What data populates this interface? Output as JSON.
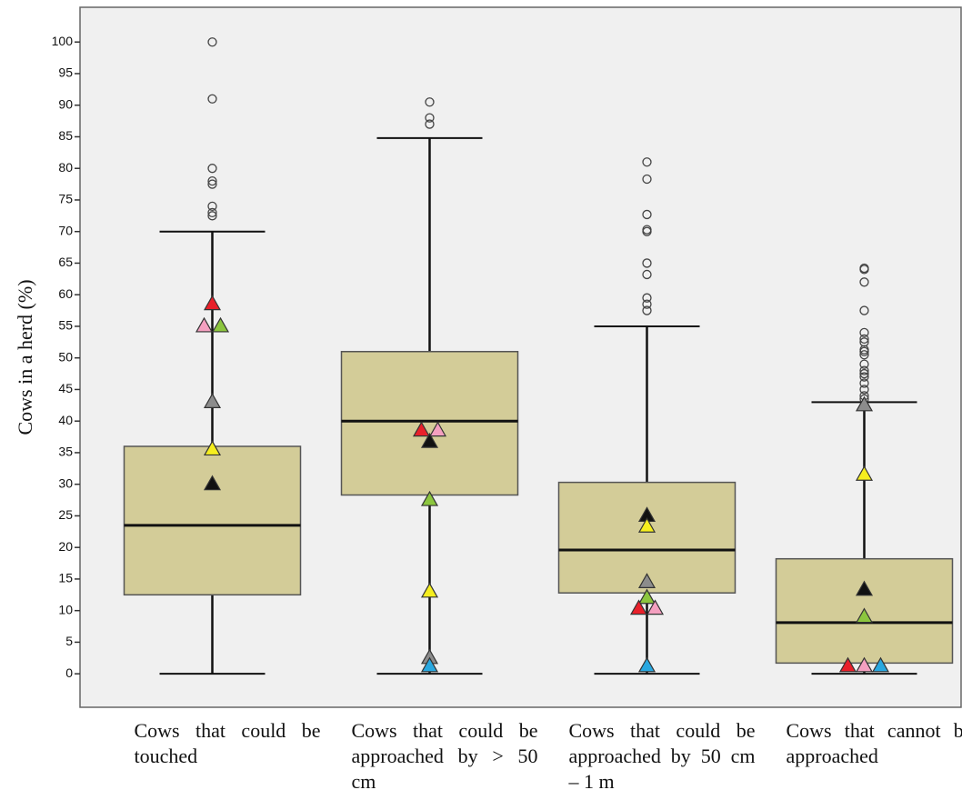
{
  "chart_data": {
    "type": "box",
    "ylabel": "Cows in a herd (%)",
    "categories": [
      "Cows that could be touched",
      "Cows that could be approached by > 50 cm",
      "Cows that could be approached by 50 cm – 1 m",
      "Cows that cannot be approached"
    ],
    "boxes": [
      {
        "whislo": 0,
        "q1": 12.5,
        "med": 23.5,
        "q3": 36,
        "whishi": 70,
        "fliers": [
          72.5,
          73,
          74,
          77.5,
          78,
          80,
          91,
          100
        ]
      },
      {
        "whislo": 0,
        "q1": 28.3,
        "med": 40,
        "q3": 51,
        "whishi": 84.8,
        "fliers": [
          87,
          88,
          90.5
        ]
      },
      {
        "whislo": 0,
        "q1": 12.8,
        "med": 19.6,
        "q3": 30.3,
        "whishi": 55,
        "fliers": [
          57.5,
          58.5,
          59.5,
          63.2,
          65,
          70,
          70.3,
          72.7,
          78.3,
          81
        ]
      },
      {
        "whislo": 0,
        "q1": 1.7,
        "med": 8.1,
        "q3": 18.2,
        "whishi": 43,
        "fliers": [
          43.5,
          44,
          45,
          46,
          47,
          47.5,
          48,
          49,
          50.5,
          51,
          51.3,
          52.5,
          53,
          54,
          57.5,
          62,
          64,
          64.2
        ]
      }
    ],
    "box_color": "#d3cc98",
    "markers": [
      {
        "color": "#e8202a",
        "values": [
          58.5,
          38.5,
          10.3,
          1.2
        ]
      },
      {
        "color": "#f4a0c0",
        "values": [
          55,
          38.5,
          10.3,
          1.2
        ]
      },
      {
        "color": "#8cc63e",
        "values": [
          55,
          27.5,
          12,
          9
        ]
      },
      {
        "color": "#8c8c8c",
        "values": [
          43,
          2.5,
          14.5,
          42.5
        ]
      },
      {
        "color": "#f5ee1e",
        "values": [
          35.5,
          13,
          23.3,
          31.5
        ]
      },
      {
        "color": "#111111",
        "values": [
          30,
          36.7,
          25,
          13.3
        ]
      },
      {
        "color": "#29a8e0",
        "values": [
          null,
          1.2,
          1.2,
          1.2
        ]
      }
    ],
    "ylim": [
      -5.3,
      105.5
    ],
    "yticks": [
      0,
      5,
      10,
      15,
      20,
      25,
      30,
      35,
      40,
      45,
      50,
      55,
      60,
      65,
      70,
      75,
      80,
      85,
      90,
      95,
      100
    ]
  }
}
